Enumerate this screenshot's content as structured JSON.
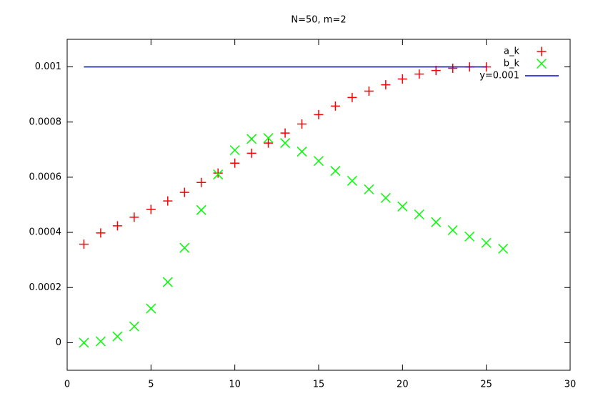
{
  "chart_data": {
    "type": "scatter",
    "title": "N=50, m=2",
    "xlim": [
      0,
      30
    ],
    "xticks": [
      0,
      5,
      10,
      15,
      20,
      25,
      30
    ],
    "ylim": [
      -0.0001,
      0.0011
    ],
    "yticks": [
      0,
      0.0002,
      0.0004,
      0.0006,
      0.0008,
      0.001
    ],
    "legend": "top-right",
    "series": [
      {
        "name": "a_k",
        "color": "#ff0000",
        "marker": "plus",
        "x": [
          1,
          2,
          3,
          4,
          5,
          6,
          7,
          8,
          9,
          10,
          11,
          12,
          13,
          14,
          15,
          16,
          17,
          18,
          19,
          20,
          21,
          22,
          23,
          24,
          25
        ],
        "values": [
          0.000357,
          0.000398,
          0.000424,
          0.000455,
          0.000483,
          0.000514,
          0.000545,
          0.000581,
          0.000615,
          0.000651,
          0.000687,
          0.000724,
          0.00076,
          0.000793,
          0.000827,
          0.000858,
          0.000889,
          0.000912,
          0.000935,
          0.000956,
          0.000974,
          0.000987,
          0.000995,
          0.001,
          0.001
        ]
      },
      {
        "name": "b_k",
        "color": "#00ff00",
        "marker": "cross",
        "x": [
          1,
          2,
          3,
          4,
          5,
          6,
          7,
          8,
          9,
          10,
          11,
          12,
          13,
          14,
          15,
          16,
          17,
          18,
          19,
          20,
          21,
          22,
          23,
          24,
          25,
          26
        ],
        "values": [
          0,
          5e-06,
          2.3e-05,
          5.9e-05,
          0.000124,
          0.00022,
          0.000344,
          0.000481,
          0.00061,
          0.000698,
          0.000739,
          0.000742,
          0.000724,
          0.000693,
          0.000659,
          0.000623,
          0.000587,
          0.000556,
          0.000525,
          0.000494,
          0.000465,
          0.000437,
          0.000408,
          0.000385,
          0.000362,
          0.000341
        ]
      },
      {
        "name": "y=0.001",
        "color": "#0000ff",
        "marker": "line",
        "x": [
          1,
          25
        ],
        "values": [
          0.001,
          0.001
        ]
      }
    ]
  }
}
